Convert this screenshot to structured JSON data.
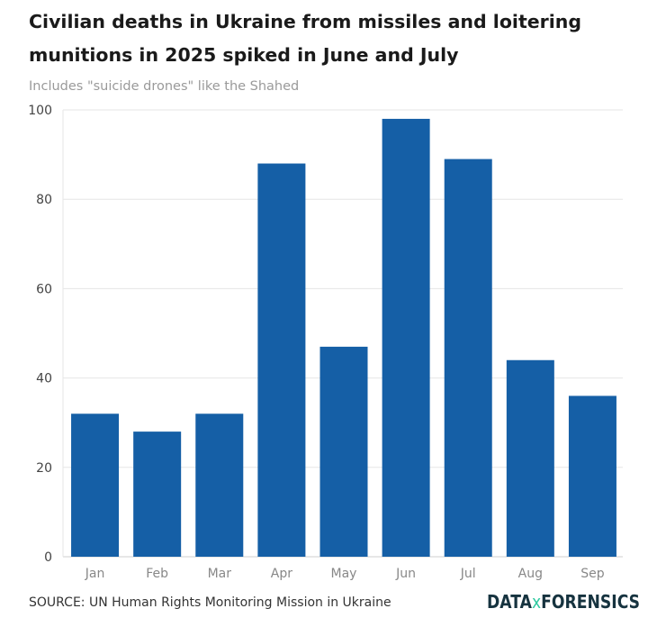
{
  "chart_data": {
    "type": "bar",
    "title": "Civilian deaths in Ukraine from missiles and loitering munitions in 2025 spiked in June and July",
    "subtitle": "Includes \"suicide drones\" like the Shahed",
    "categories": [
      "Jan",
      "Feb",
      "Mar",
      "Apr",
      "May",
      "Jun",
      "Jul",
      "Aug",
      "Sep"
    ],
    "values": [
      32,
      28,
      32,
      88,
      47,
      98,
      89,
      44,
      36
    ],
    "ylim": [
      0,
      100
    ],
    "yticks": [
      0,
      20,
      40,
      60,
      80,
      100
    ],
    "xlabel": "",
    "ylabel": "",
    "grid": true,
    "bar_color": "#155fa6"
  },
  "source": "SOURCE: UN Human Rights Monitoring Mission in Ukraine",
  "logo": {
    "left": "DATA",
    "mid": "x",
    "right": "FORENSICS"
  }
}
